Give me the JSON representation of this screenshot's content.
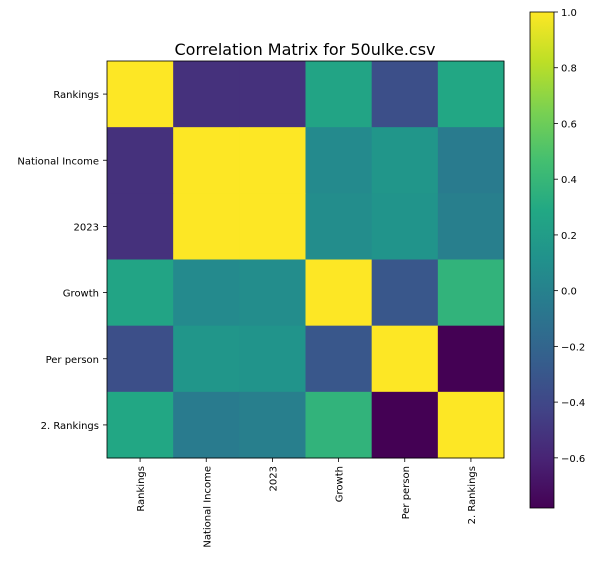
{
  "chart_data": {
    "type": "heatmap",
    "title": "Correlation Matrix for 50ulke.csv",
    "labels": [
      "Rankings",
      "National Income",
      "2023",
      "Growth",
      "Per person",
      "2. Rankings"
    ],
    "matrix": [
      [
        1.0,
        -0.53,
        -0.53,
        0.26,
        -0.35,
        0.28
      ],
      [
        -0.53,
        1.0,
        1.0,
        0.06,
        0.15,
        -0.05
      ],
      [
        -0.53,
        1.0,
        1.0,
        0.08,
        0.13,
        -0.02
      ],
      [
        0.26,
        0.06,
        0.08,
        1.0,
        -0.3,
        0.37
      ],
      [
        -0.35,
        0.15,
        0.13,
        -0.3,
        1.0,
        -0.78
      ],
      [
        0.28,
        -0.05,
        -0.02,
        0.37,
        -0.78,
        1.0
      ]
    ],
    "colormap": "viridis",
    "colorbar": {
      "vmin": -0.78,
      "vmax": 1.0,
      "ticks": [
        -0.6,
        -0.4,
        -0.2,
        0.0,
        0.2,
        0.4,
        0.6,
        0.8,
        1.0
      ],
      "tick_labels": [
        "−0.6",
        "−0.4",
        "−0.2",
        "0.0",
        "0.2",
        "0.4",
        "0.6",
        "0.8",
        "1.0"
      ]
    }
  }
}
